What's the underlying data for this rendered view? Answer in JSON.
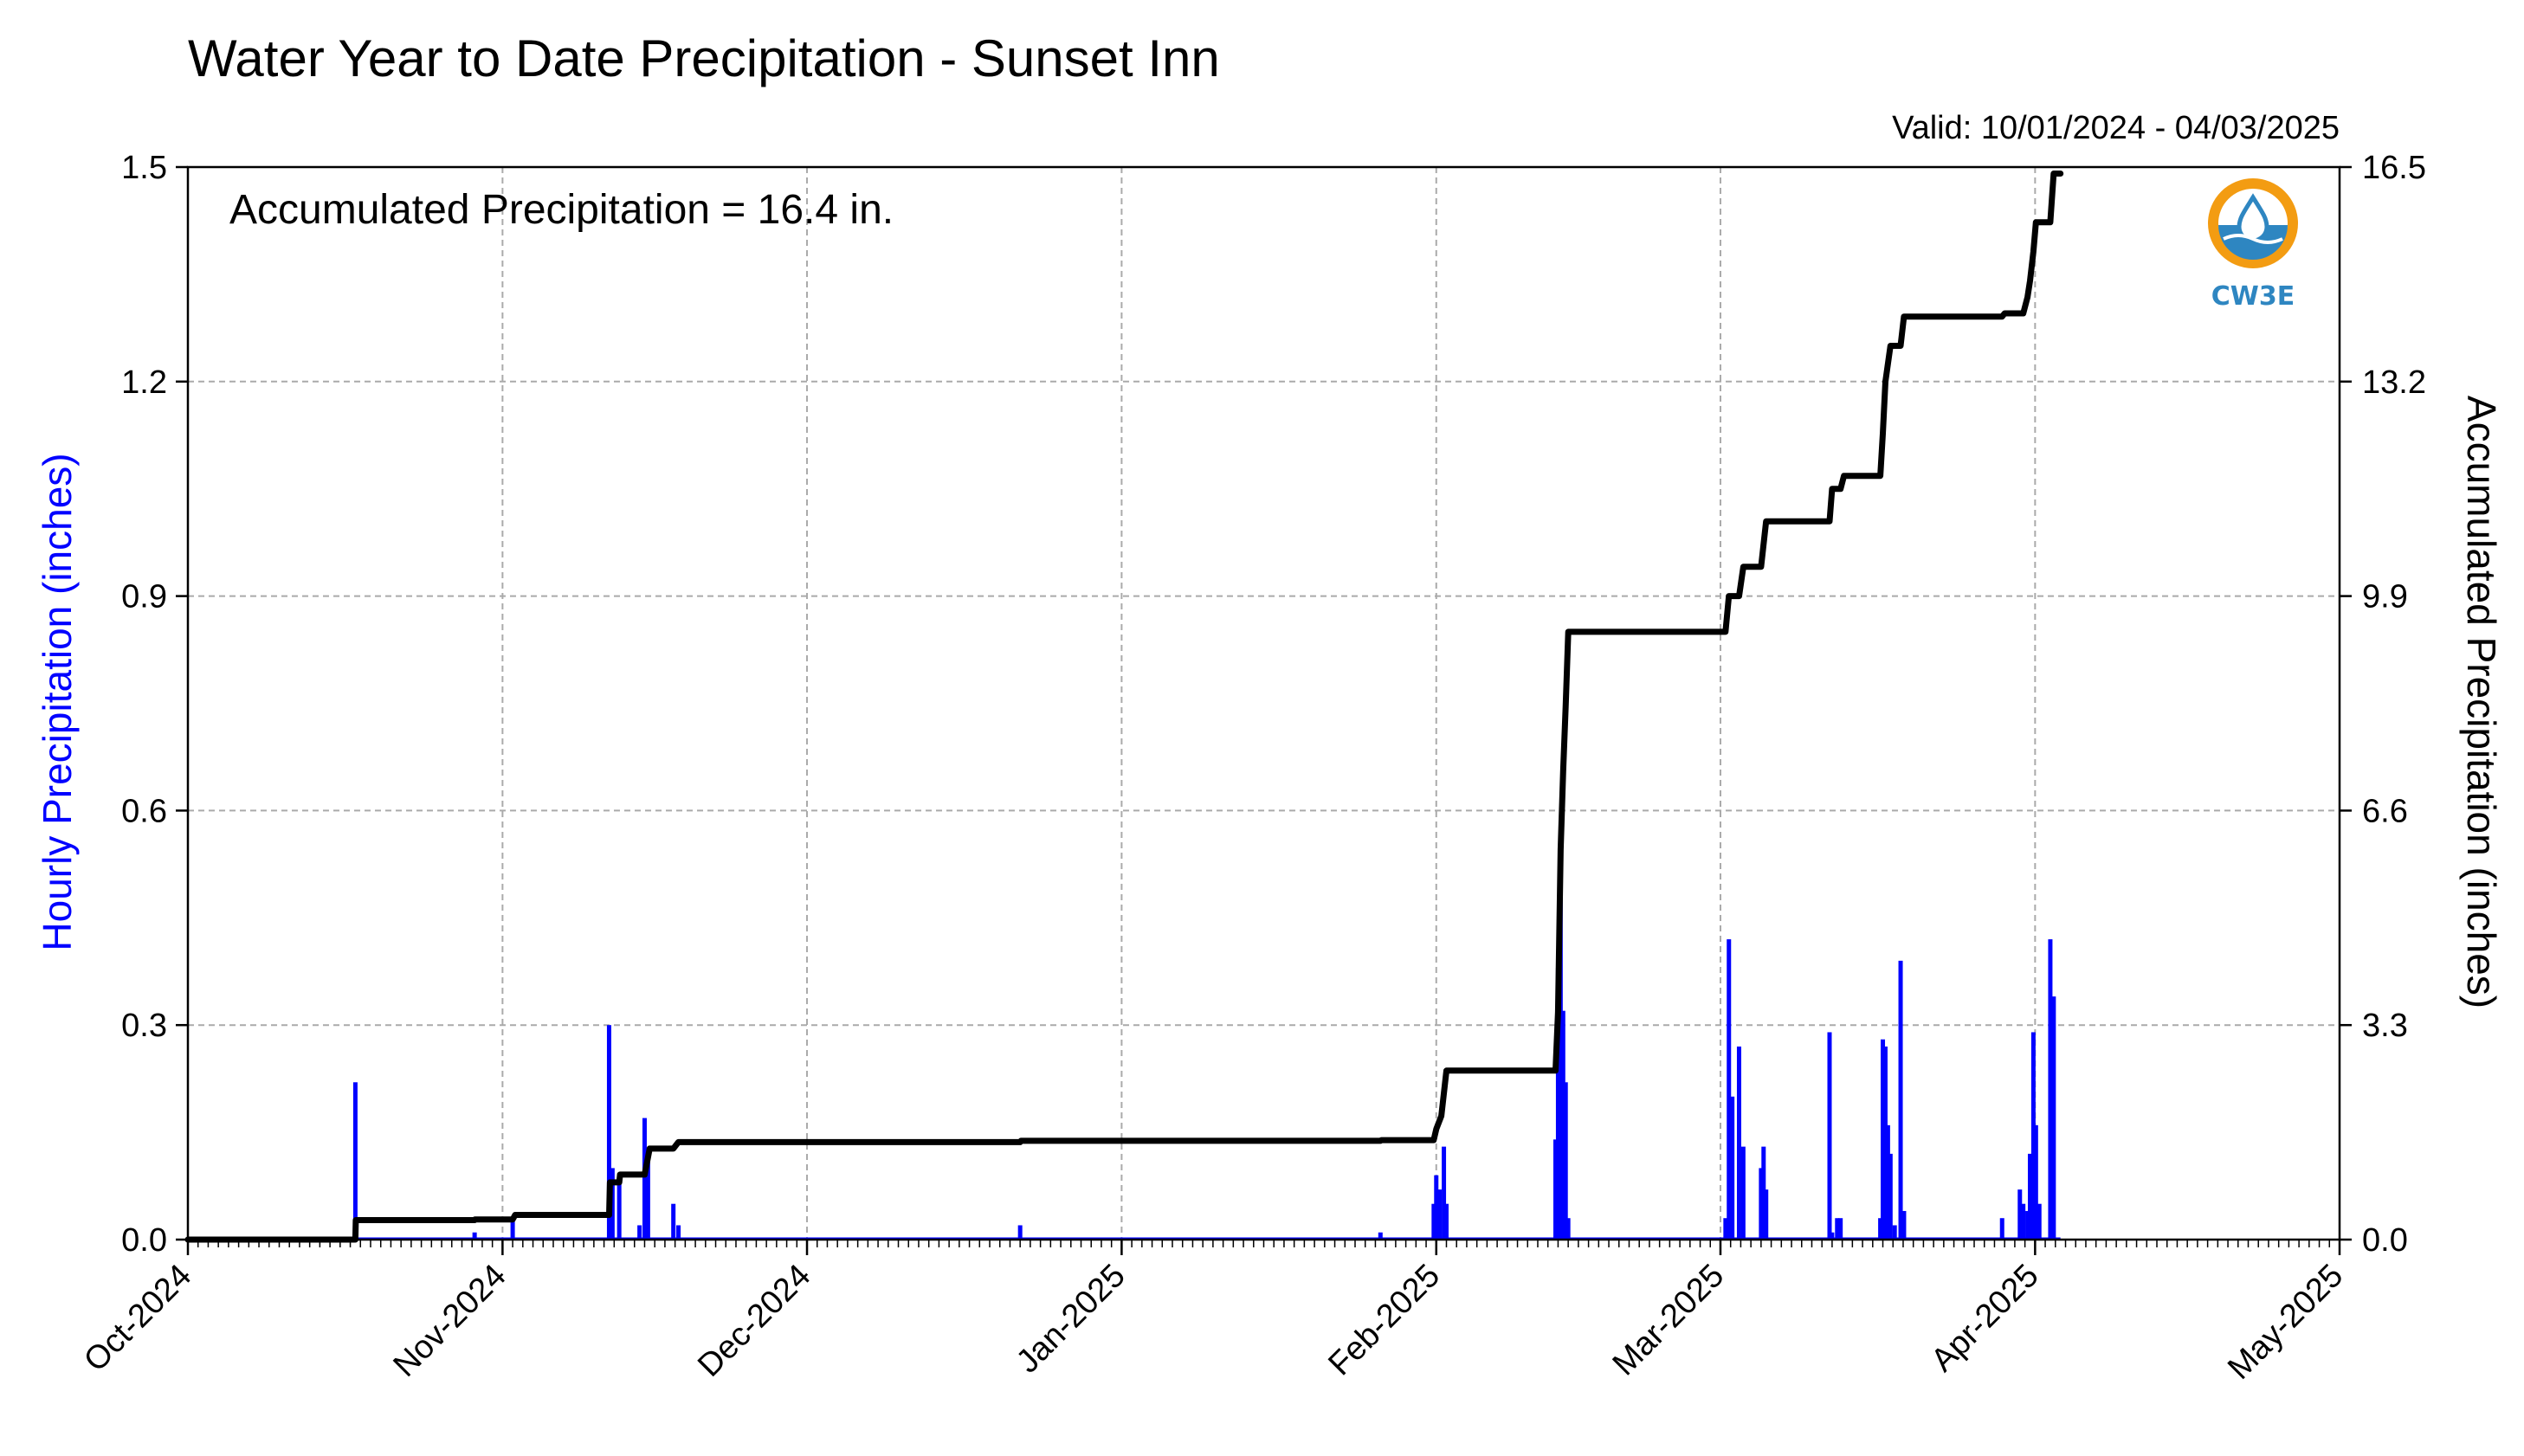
{
  "chart_data": {
    "type": "bar+line",
    "title": "Water Year to Date Precipitation - Sunset Inn",
    "subtitle": "Valid: 10/01/2024 - 04/03/2025",
    "annotation": "Accumulated Precipitation = 16.4 in.",
    "logo_text": "CW3E",
    "ylabel_left": "Hourly Precipitation (inches)",
    "ylabel_right": "Accumulated Precipitation (inches)",
    "y_left_ticks": [
      "0.0",
      "0.3",
      "0.6",
      "0.9",
      "1.2",
      "1.5"
    ],
    "y_right_ticks": [
      "0.0",
      "3.3",
      "6.6",
      "9.9",
      "13.2",
      "16.5"
    ],
    "ylim_left": [
      0,
      1.5
    ],
    "ylim_right": [
      0,
      16.5
    ],
    "x_ticks": [
      "Oct-2024",
      "Nov-2024",
      "Dec-2024",
      "Jan-2025",
      "Feb-2025",
      "Mar-2025",
      "Apr-2025",
      "May-2025"
    ],
    "xlim": [
      "2024-10-01",
      "2025-05-01"
    ],
    "grid": true,
    "colors": {
      "hourly": "#0000ff",
      "accumulated": "#000000",
      "grid": "#aaaaaa",
      "left_label": "#0000ff",
      "logo": "#2e86c1",
      "logo_ring": "#f39c12"
    },
    "series": [
      {
        "name": "Hourly Precipitation",
        "type": "bar",
        "axis": "left",
        "data": [
          [
            "2024-10-17T12",
            0.22
          ],
          [
            "2024-10-29T06",
            0.01
          ],
          [
            "2024-11-02T00",
            0.03
          ],
          [
            "2024-11-11T12",
            0.3
          ],
          [
            "2024-11-11T20",
            0.1
          ],
          [
            "2024-11-12T12",
            0.08
          ],
          [
            "2024-11-14T12",
            0.02
          ],
          [
            "2024-11-15T00",
            0.17
          ],
          [
            "2024-11-15T08",
            0.12
          ],
          [
            "2024-11-17T20",
            0.05
          ],
          [
            "2024-11-18T08",
            0.02
          ],
          [
            "2024-12-22T00",
            0.02
          ],
          [
            "2025-01-26T12",
            0.01
          ],
          [
            "2025-01-31T18",
            0.05
          ],
          [
            "2025-02-01T00",
            0.09
          ],
          [
            "2025-02-01T08",
            0.07
          ],
          [
            "2025-02-01T18",
            0.13
          ],
          [
            "2025-02-02T00",
            0.05
          ],
          [
            "2025-02-12T18",
            0.14
          ],
          [
            "2025-02-13T00",
            0.38
          ],
          [
            "2025-02-13T06",
            0.55
          ],
          [
            "2025-02-13T12",
            0.32
          ],
          [
            "2025-02-13T18",
            0.22
          ],
          [
            "2025-02-14T00",
            0.03
          ],
          [
            "2025-03-01T12",
            0.03
          ],
          [
            "2025-03-01T20",
            0.42
          ],
          [
            "2025-03-02T04",
            0.2
          ],
          [
            "2025-03-02T20",
            0.27
          ],
          [
            "2025-03-03T06",
            0.13
          ],
          [
            "2025-03-05T00",
            0.1
          ],
          [
            "2025-03-05T06",
            0.13
          ],
          [
            "2025-03-05T12",
            0.07
          ],
          [
            "2025-03-11T18",
            0.29
          ],
          [
            "2025-03-12T00",
            0.01
          ],
          [
            "2025-03-12T12",
            0.03
          ],
          [
            "2025-03-12T20",
            0.03
          ],
          [
            "2025-03-16T18",
            0.03
          ],
          [
            "2025-03-17T00",
            0.28
          ],
          [
            "2025-03-17T06",
            0.27
          ],
          [
            "2025-03-17T12",
            0.16
          ],
          [
            "2025-03-17T18",
            0.12
          ],
          [
            "2025-03-18T04",
            0.02
          ],
          [
            "2025-03-18T18",
            0.39
          ],
          [
            "2025-03-19T02",
            0.04
          ],
          [
            "2025-03-28T18",
            0.03
          ],
          [
            "2025-03-30T12",
            0.07
          ],
          [
            "2025-03-30T20",
            0.05
          ],
          [
            "2025-03-31T06",
            0.04
          ],
          [
            "2025-03-31T12",
            0.12
          ],
          [
            "2025-03-31T20",
            0.29
          ],
          [
            "2025-04-01T02",
            0.16
          ],
          [
            "2025-04-01T10",
            0.05
          ],
          [
            "2025-04-02T12",
            0.42
          ],
          [
            "2025-04-02T20",
            0.34
          ]
        ]
      },
      {
        "name": "Accumulated Precipitation",
        "type": "line",
        "axis": "right",
        "data": [
          [
            "2024-10-01T00",
            0.0
          ],
          [
            "2024-10-17T12",
            0.0
          ],
          [
            "2024-10-17T13",
            0.3
          ],
          [
            "2024-10-29T06",
            0.3
          ],
          [
            "2024-10-29T07",
            0.31
          ],
          [
            "2024-11-02T00",
            0.31
          ],
          [
            "2024-11-02T06",
            0.38
          ],
          [
            "2024-11-11T12",
            0.38
          ],
          [
            "2024-11-11T14",
            0.88
          ],
          [
            "2024-11-12T12",
            0.88
          ],
          [
            "2024-11-12T14",
            1.0
          ],
          [
            "2024-11-15T00",
            1.0
          ],
          [
            "2024-11-15T12",
            1.4
          ],
          [
            "2024-11-17T20",
            1.4
          ],
          [
            "2024-11-18T08",
            1.5
          ],
          [
            "2024-12-22T00",
            1.5
          ],
          [
            "2024-12-22T02",
            1.52
          ],
          [
            "2025-01-26T12",
            1.52
          ],
          [
            "2025-01-26T14",
            1.53
          ],
          [
            "2025-01-31T18",
            1.53
          ],
          [
            "2025-02-01T00",
            1.7
          ],
          [
            "2025-02-01T12",
            1.9
          ],
          [
            "2025-02-02T00",
            2.6
          ],
          [
            "2025-02-12T18",
            2.6
          ],
          [
            "2025-02-13T00",
            3.5
          ],
          [
            "2025-02-13T06",
            6.0
          ],
          [
            "2025-02-13T12",
            7.2
          ],
          [
            "2025-02-13T18",
            8.2
          ],
          [
            "2025-02-14T00",
            9.35
          ],
          [
            "2025-03-01T12",
            9.35
          ],
          [
            "2025-03-01T20",
            9.9
          ],
          [
            "2025-03-02T20",
            9.9
          ],
          [
            "2025-03-03T06",
            10.35
          ],
          [
            "2025-03-05T00",
            10.35
          ],
          [
            "2025-03-05T12",
            11.05
          ],
          [
            "2025-03-11T18",
            11.05
          ],
          [
            "2025-03-12T00",
            11.55
          ],
          [
            "2025-03-12T20",
            11.55
          ],
          [
            "2025-03-13T04",
            11.75
          ],
          [
            "2025-03-16T18",
            11.75
          ],
          [
            "2025-03-17T00",
            12.4
          ],
          [
            "2025-03-17T06",
            13.2
          ],
          [
            "2025-03-17T18",
            13.75
          ],
          [
            "2025-03-18T18",
            13.75
          ],
          [
            "2025-03-19T02",
            14.2
          ],
          [
            "2025-03-28T18",
            14.2
          ],
          [
            "2025-03-29T00",
            14.25
          ],
          [
            "2025-03-30T20",
            14.25
          ],
          [
            "2025-03-31T06",
            14.5
          ],
          [
            "2025-03-31T12",
            14.75
          ],
          [
            "2025-03-31T20",
            15.2
          ],
          [
            "2025-04-01T02",
            15.65
          ],
          [
            "2025-04-02T12",
            15.65
          ],
          [
            "2025-04-02T20",
            16.4
          ],
          [
            "2025-04-03T12",
            16.4
          ]
        ]
      }
    ]
  }
}
